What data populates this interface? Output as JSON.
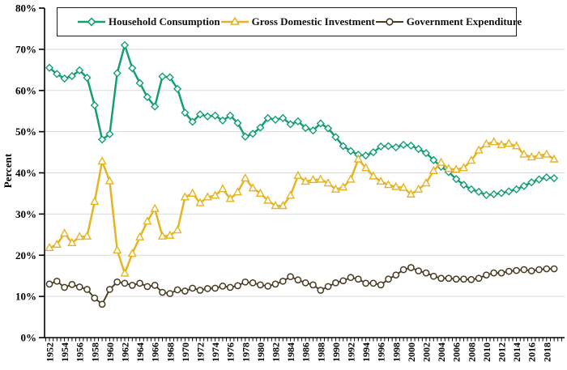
{
  "chart_data": {
    "type": "line",
    "title": "",
    "ylabel": "Percent",
    "grid": "horizontal",
    "legend_position": "top-inside-boxed",
    "ylim": [
      0,
      80
    ],
    "y_ticks": [
      {
        "value": 0,
        "label": "0%"
      },
      {
        "value": 10,
        "label": "10%"
      },
      {
        "value": 20,
        "label": "20%"
      },
      {
        "value": 30,
        "label": "30%"
      },
      {
        "value": 40,
        "label": "40%"
      },
      {
        "value": 50,
        "label": "50%"
      },
      {
        "value": 60,
        "label": "60%"
      },
      {
        "value": 70,
        "label": "70%"
      },
      {
        "value": 80,
        "label": "80%"
      }
    ],
    "x_tick_years": [
      1952,
      1954,
      1956,
      1958,
      1960,
      1962,
      1964,
      1966,
      1968,
      1970,
      1972,
      1974,
      1976,
      1978,
      1980,
      1982,
      1984,
      1986,
      1988,
      1990,
      1992,
      1994,
      1996,
      1998,
      2000,
      2002,
      2004,
      2006,
      2008,
      2010,
      2012,
      2014,
      2016,
      2018
    ],
    "x": [
      1952,
      1953,
      1954,
      1955,
      1956,
      1957,
      1958,
      1959,
      1960,
      1961,
      1962,
      1963,
      1964,
      1965,
      1966,
      1967,
      1968,
      1969,
      1970,
      1971,
      1972,
      1973,
      1974,
      1975,
      1976,
      1977,
      1978,
      1979,
      1980,
      1981,
      1982,
      1983,
      1984,
      1985,
      1986,
      1987,
      1988,
      1989,
      1990,
      1991,
      1992,
      1993,
      1994,
      1995,
      1996,
      1997,
      1998,
      1999,
      2000,
      2001,
      2002,
      2003,
      2004,
      2005,
      2006,
      2007,
      2008,
      2009,
      2010,
      2011,
      2012,
      2013,
      2014,
      2015,
      2016,
      2017,
      2018,
      2019
    ],
    "series": [
      {
        "name": "Household Consumption",
        "color": "#149e77",
        "marker": "diamond",
        "values": [
          65.5,
          64.0,
          62.9,
          63.5,
          64.9,
          63.1,
          56.4,
          48.1,
          49.4,
          64.2,
          71.0,
          65.4,
          61.8,
          58.4,
          56.1,
          63.4,
          63.2,
          60.4,
          54.6,
          52.4,
          54.2,
          53.7,
          53.9,
          52.7,
          53.9,
          52.1,
          48.8,
          49.5,
          51.0,
          53.3,
          52.9,
          53.3,
          51.8,
          52.5,
          50.9,
          50.3,
          52.0,
          50.8,
          48.7,
          46.5,
          45.3,
          44.4,
          44.2,
          45.0,
          46.4,
          46.5,
          46.2,
          46.8,
          46.6,
          45.8,
          44.8,
          43.1,
          41.5,
          40.2,
          38.5,
          37.1,
          36.0,
          35.4,
          34.6,
          34.8,
          35.1,
          35.5,
          36.0,
          36.8,
          37.7,
          38.4,
          38.9,
          38.7
        ]
      },
      {
        "name": "Gross Domestic Investment",
        "color": "#e6b422",
        "marker": "triangle",
        "values": [
          21.8,
          22.6,
          25.3,
          23.0,
          24.5,
          24.6,
          33.0,
          42.8,
          38.0,
          21.2,
          15.6,
          20.4,
          24.4,
          28.2,
          31.3,
          24.6,
          24.8,
          26.1,
          34.1,
          35.0,
          32.7,
          34.1,
          34.5,
          36.1,
          33.7,
          35.3,
          38.7,
          36.3,
          35.0,
          33.3,
          32.0,
          32.0,
          34.5,
          39.3,
          37.9,
          38.3,
          38.4,
          37.5,
          36.0,
          36.5,
          38.4,
          43.3,
          41.2,
          39.2,
          37.9,
          37.1,
          36.6,
          36.4,
          34.8,
          36.0,
          37.5,
          40.5,
          42.5,
          41.0,
          40.8,
          41.2,
          43.0,
          45.5,
          47.0,
          47.5,
          46.8,
          47.1,
          46.5,
          44.5,
          43.8,
          44.2,
          44.5,
          43.3
        ]
      },
      {
        "name": "Government Expenditure",
        "color": "#473b22",
        "marker": "circle",
        "values": [
          13.0,
          13.7,
          12.2,
          12.9,
          12.3,
          11.7,
          9.6,
          8.1,
          11.7,
          13.5,
          13.2,
          12.7,
          13.2,
          12.4,
          12.7,
          11.0,
          10.7,
          11.6,
          11.3,
          12.0,
          11.5,
          11.9,
          12.0,
          12.5,
          12.2,
          12.6,
          13.5,
          13.3,
          12.8,
          12.5,
          13.0,
          13.7,
          14.8,
          14.0,
          13.3,
          12.8,
          11.5,
          12.4,
          13.3,
          13.8,
          14.6,
          14.2,
          13.2,
          13.2,
          12.8,
          14.2,
          15.2,
          16.5,
          17.0,
          16.2,
          15.7,
          14.9,
          14.4,
          14.4,
          14.2,
          14.2,
          14.1,
          14.4,
          15.2,
          15.7,
          15.7,
          16.1,
          16.3,
          16.5,
          16.2,
          16.5,
          16.7,
          16.7
        ]
      }
    ],
    "style_colors": {
      "grid": "#d9d9d9",
      "axis": "#000000",
      "marker_fill": "#ffffff"
    }
  }
}
